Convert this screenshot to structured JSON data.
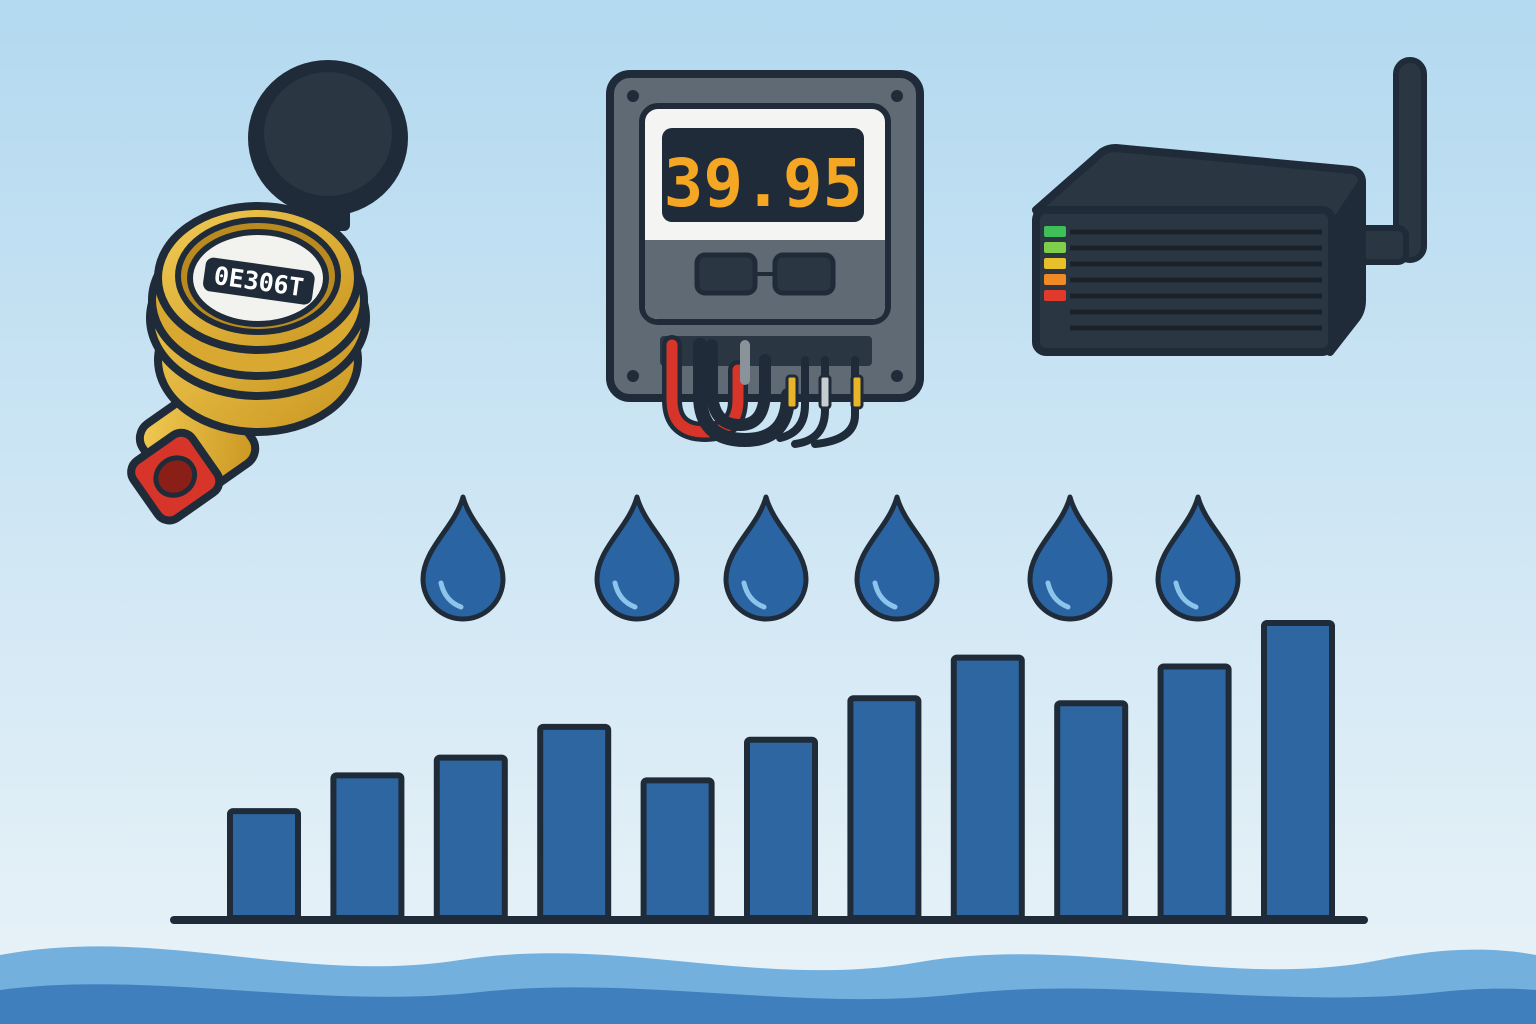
{
  "colors": {
    "sky_top": "#b3d9f0",
    "sky_bottom": "#eaf3f8",
    "outline": "#1f2b38",
    "bar_fill": "#2d66a0",
    "water_dark": "#3f7fbe",
    "water_light": "#74b0dd",
    "drop_fill": "#2a64a3",
    "drop_highlight": "#8cc4ec",
    "brass": "#e0b23a",
    "brass_dark": "#b98a1f",
    "display_digits": "#f5a623",
    "led_colors": [
      "#3fbf5a",
      "#7fcf4a",
      "#e8c12a",
      "#f08a24",
      "#e03a2a"
    ]
  },
  "water_meter": {
    "icon": "water-meter-icon",
    "counter_reading": "0E306T"
  },
  "electric_meter": {
    "icon": "electric-meter-icon",
    "display_value": "39.95"
  },
  "gateway": {
    "icon": "iot-gateway-icon",
    "led_count": 5
  },
  "drops": {
    "icon": "water-drop-icon",
    "count": 6
  },
  "chart_data": {
    "type": "bar",
    "values": [
      10.8,
      14.4,
      16.2,
      19.3,
      13.9,
      18.0,
      22.2,
      26.3,
      21.7,
      25.4,
      29.8
    ],
    "ylim": [
      0,
      30
    ]
  }
}
